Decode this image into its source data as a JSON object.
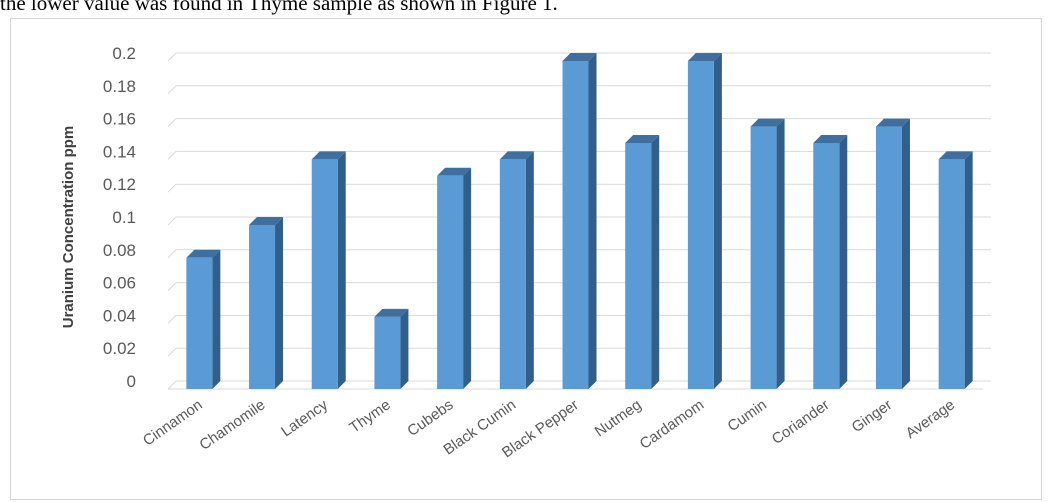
{
  "caption_fragment": "the lower value  was found in Thyme sample as shown in Figure 1.",
  "colors": {
    "bar_front": "#5b9bd5",
    "bar_side": "#2f5f8a",
    "bar_top": "#3f6f9f",
    "grid": "#d9d9d9",
    "text": "#595959"
  },
  "chart_data": {
    "type": "bar",
    "title": "",
    "xlabel": "",
    "ylabel": "Uranium Concentration ppm",
    "categories": [
      "Cinnamon",
      "Chamomile",
      "Latency",
      "Thyme",
      "Cubebs",
      "Black Cumin",
      "Black Pepper",
      "Nutmeg",
      "Cardamom",
      "Cumin",
      "Coriander",
      "Ginger",
      "Average"
    ],
    "values": [
      0.08,
      0.1,
      0.14,
      0.044,
      0.13,
      0.14,
      0.2,
      0.15,
      0.2,
      0.16,
      0.15,
      0.16,
      0.14
    ],
    "ylim": [
      0,
      0.2
    ],
    "yticks": [
      "0",
      "0.02",
      "0.04",
      "0.06",
      "0.08",
      "0.1",
      "0.12",
      "0.14",
      "0.16",
      "0.18",
      "0.2"
    ],
    "grid": true,
    "legend": "none",
    "style": "3d-column"
  }
}
